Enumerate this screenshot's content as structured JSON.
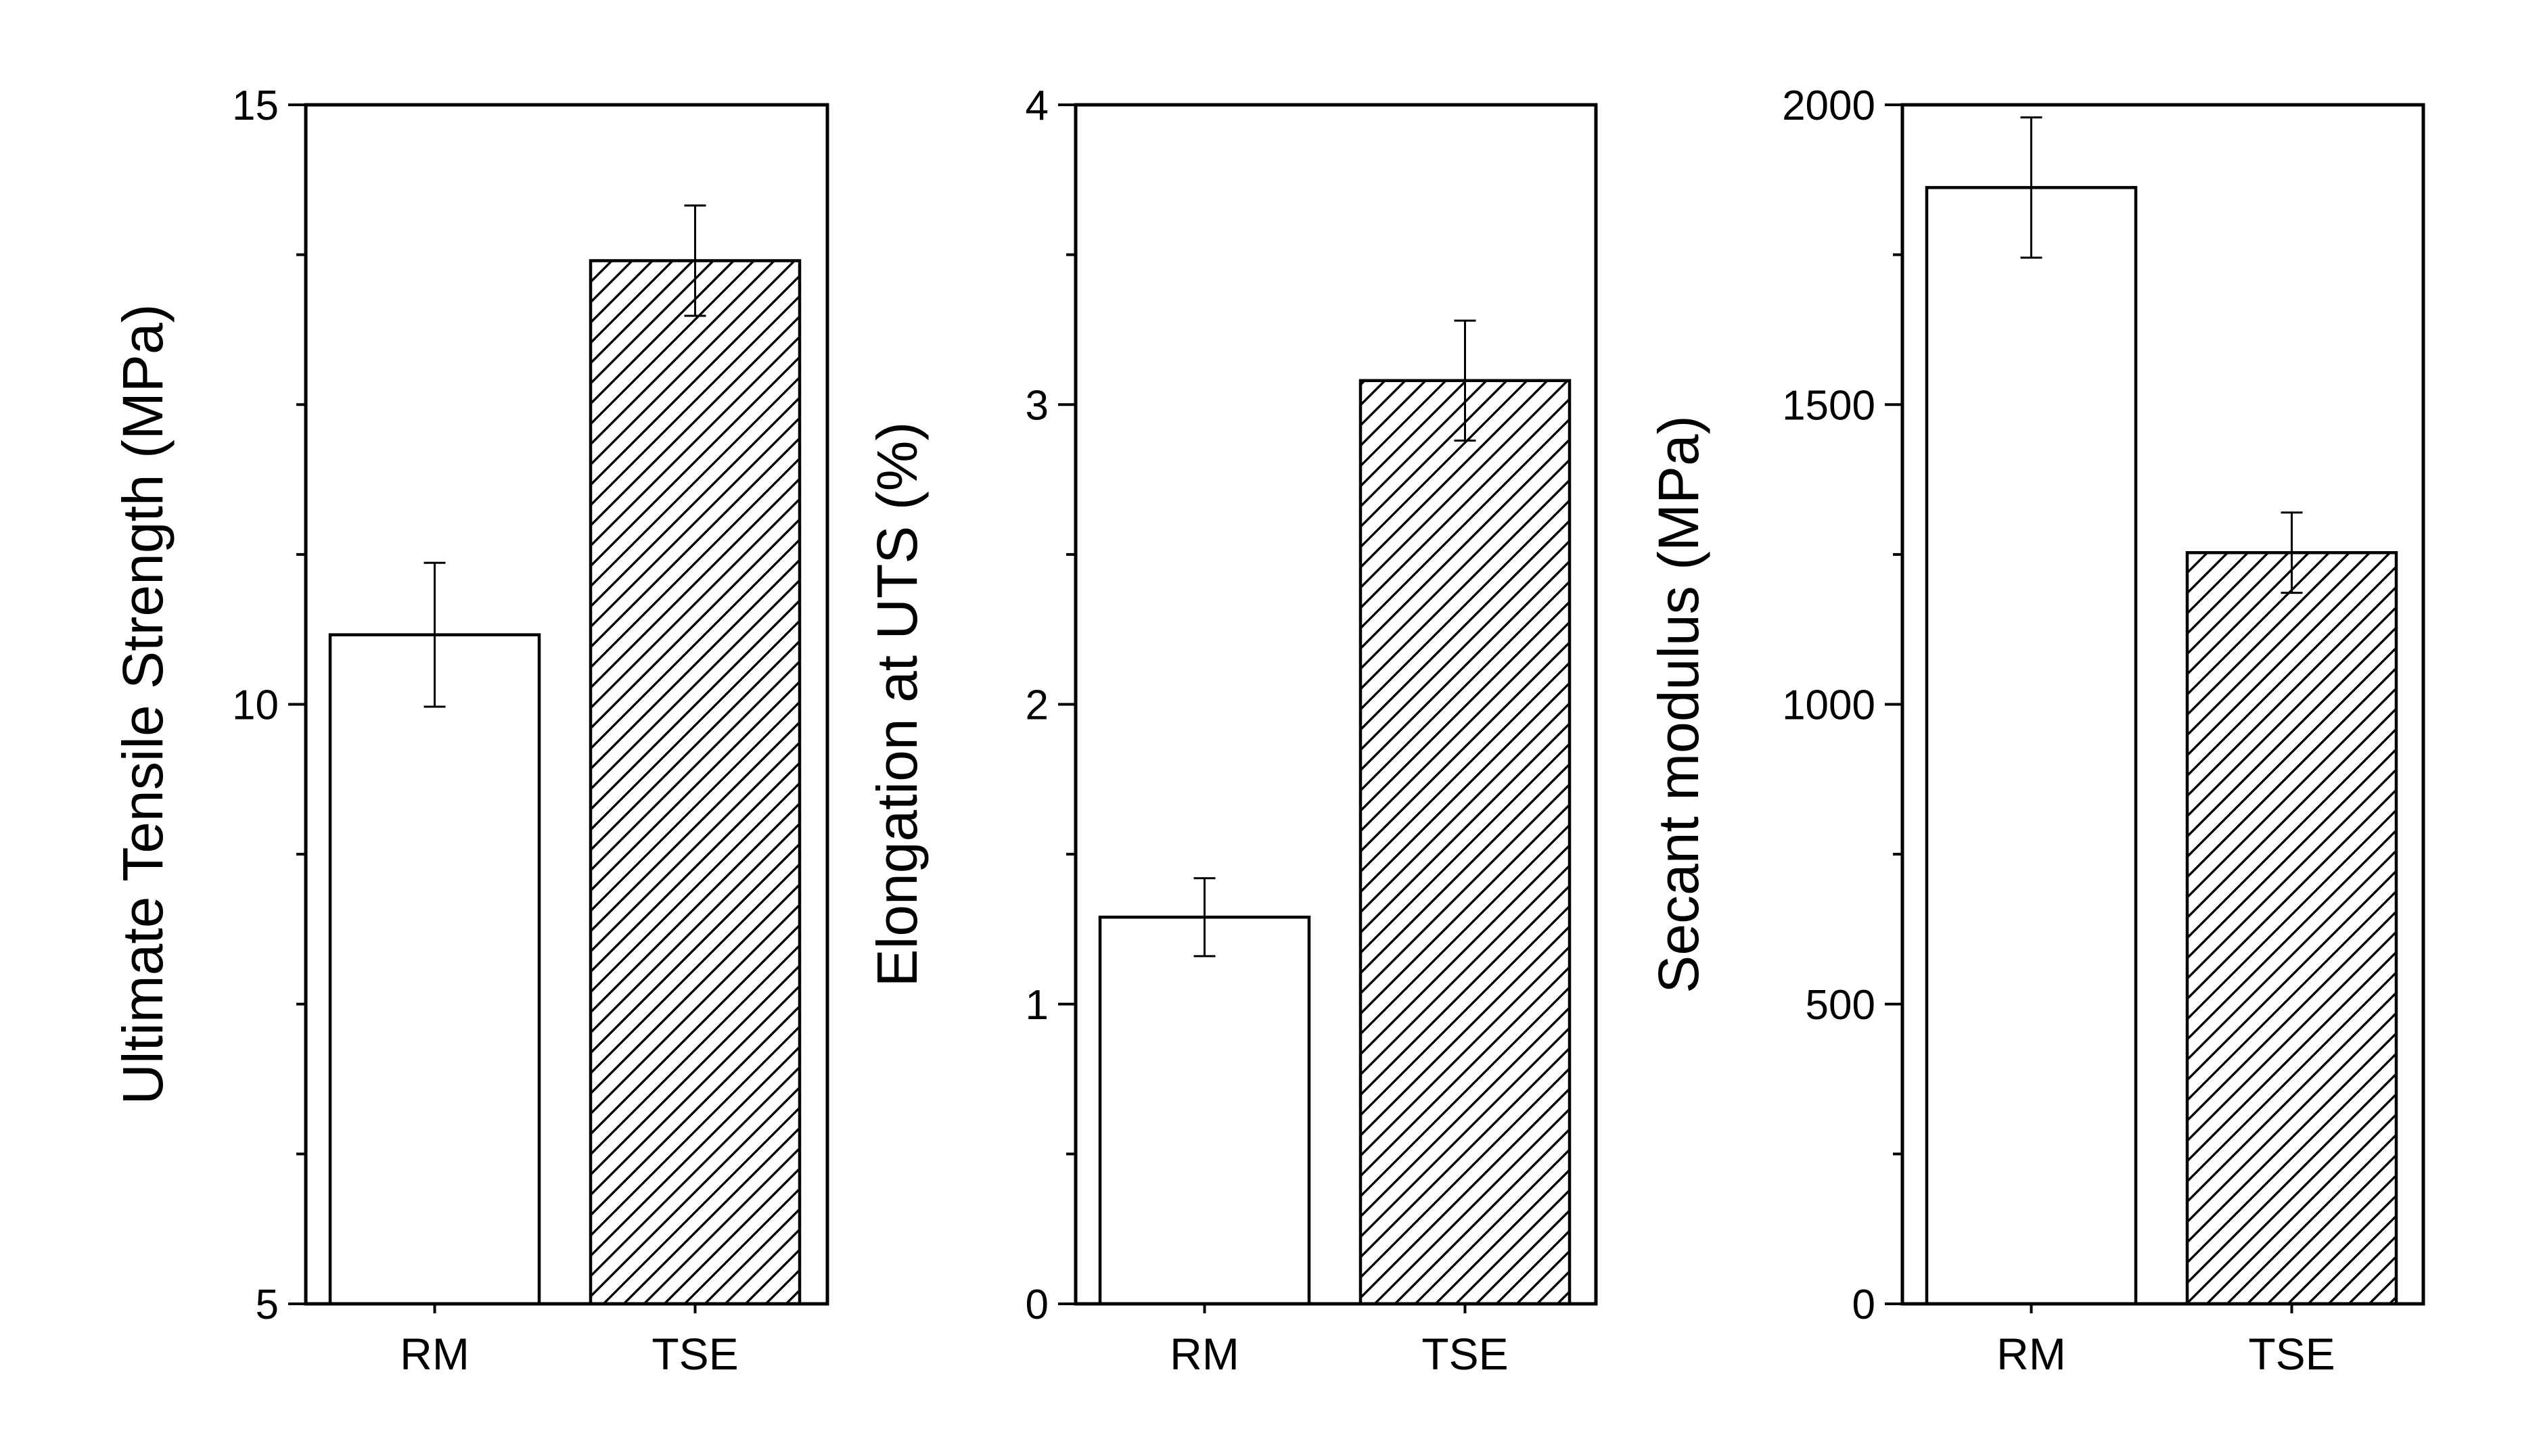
{
  "chart_data": [
    {
      "type": "bar",
      "categories": [
        "RM",
        "TSE"
      ],
      "values": [
        10.58,
        13.7
      ],
      "errors": [
        0.6,
        0.46
      ],
      "ylabel": "Ultimate Tensile Strength (MPa)",
      "ylim": [
        5,
        15
      ],
      "yticks": [
        5,
        10,
        15
      ],
      "yticks_labels": [
        "5",
        "10",
        "15"
      ],
      "patterns": [
        "none",
        "hatch"
      ],
      "grid": false
    },
    {
      "type": "bar",
      "categories": [
        "RM",
        "TSE"
      ],
      "values": [
        1.29,
        3.08
      ],
      "errors": [
        0.13,
        0.2
      ],
      "ylabel": "Elongation at UTS (%)",
      "ylim": [
        0,
        4
      ],
      "yticks": [
        0,
        1,
        2,
        3,
        4
      ],
      "yticks_labels": [
        "0",
        "1",
        "2",
        "3",
        "4"
      ],
      "patterns": [
        "none",
        "hatch"
      ],
      "grid": false
    },
    {
      "type": "bar",
      "categories": [
        "RM",
        "TSE"
      ],
      "values": [
        1862,
        1253
      ],
      "errors": [
        117,
        67
      ],
      "ylabel": "Secant modulus (MPa)",
      "ylim": [
        0,
        2000
      ],
      "yticks": [
        0,
        500,
        1000,
        1500,
        2000
      ],
      "yticks_labels": [
        "0",
        "500",
        "1000",
        "1500",
        "2000"
      ],
      "patterns": [
        "none",
        "hatch"
      ],
      "grid": false
    }
  ]
}
